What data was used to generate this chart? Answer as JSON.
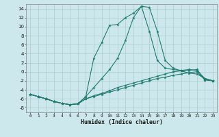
{
  "xlabel": "Humidex (Indice chaleur)",
  "bg_color": "#cce8ec",
  "grid_color": "#aacccc",
  "line_color": "#1e7b6e",
  "xlim": [
    -0.5,
    23.5
  ],
  "ylim": [
    -9,
    15
  ],
  "xticks": [
    0,
    1,
    2,
    3,
    4,
    5,
    6,
    7,
    8,
    9,
    10,
    11,
    12,
    13,
    14,
    15,
    16,
    17,
    18,
    19,
    20,
    21,
    22,
    23
  ],
  "yticks": [
    -8,
    -6,
    -4,
    -2,
    0,
    2,
    4,
    6,
    8,
    10,
    12,
    14
  ],
  "s1_x": [
    0,
    1,
    2,
    3,
    4,
    5,
    6,
    7,
    8,
    9,
    10,
    11,
    12,
    13,
    14,
    15,
    16,
    17,
    18,
    19,
    20,
    21,
    22,
    23
  ],
  "s1_y": [
    -5.0,
    -5.5,
    -6.0,
    -6.6,
    -7.0,
    -7.3,
    -7.1,
    -6.0,
    -5.3,
    -4.8,
    -4.2,
    -3.5,
    -3.0,
    -2.5,
    -2.0,
    -1.5,
    -1.0,
    -0.5,
    0.0,
    0.2,
    0.3,
    0.5,
    -1.8,
    -2.0
  ],
  "s2_x": [
    0,
    1,
    2,
    3,
    4,
    5,
    6,
    7,
    8,
    9,
    10,
    11,
    12,
    13,
    14,
    15,
    16,
    17,
    18,
    19,
    20,
    21,
    22,
    23
  ],
  "s2_y": [
    -5.0,
    -5.5,
    -6.0,
    -6.6,
    -7.0,
    -7.3,
    -7.1,
    -5.5,
    -3.5,
    -1.5,
    0.5,
    3.0,
    7.0,
    12.0,
    14.5,
    14.3,
    9.0,
    2.5,
    0.8,
    0.2,
    -0.3,
    -0.5,
    -1.5,
    -2.0
  ],
  "s3_x": [
    0,
    1,
    2,
    3,
    4,
    5,
    6,
    7,
    8,
    9,
    10,
    11,
    12,
    13,
    14,
    15,
    16,
    17,
    18,
    19,
    20,
    21,
    22,
    23
  ],
  "s3_y": [
    -5.0,
    -5.5,
    -6.0,
    -6.6,
    -7.0,
    -7.3,
    -7.1,
    -6.0,
    -5.5,
    -5.0,
    -4.5,
    -4.0,
    -3.5,
    -3.0,
    -2.5,
    -2.0,
    -1.5,
    -1.2,
    -0.8,
    -0.5,
    -0.2,
    0.0,
    -1.8,
    -2.0
  ],
  "s4_x": [
    0,
    1,
    2,
    3,
    4,
    5,
    6,
    7,
    8,
    9,
    10,
    11,
    12,
    13,
    14,
    15,
    16,
    17,
    18,
    19,
    20,
    21,
    22,
    23
  ],
  "s4_y": [
    -5.0,
    -5.5,
    -6.0,
    -6.6,
    -7.0,
    -7.3,
    -7.1,
    -5.5,
    3.0,
    6.5,
    10.3,
    10.5,
    12.0,
    13.0,
    14.5,
    9.0,
    2.5,
    0.8,
    0.5,
    0.3,
    0.5,
    0.3,
    -1.5,
    -2.0
  ]
}
